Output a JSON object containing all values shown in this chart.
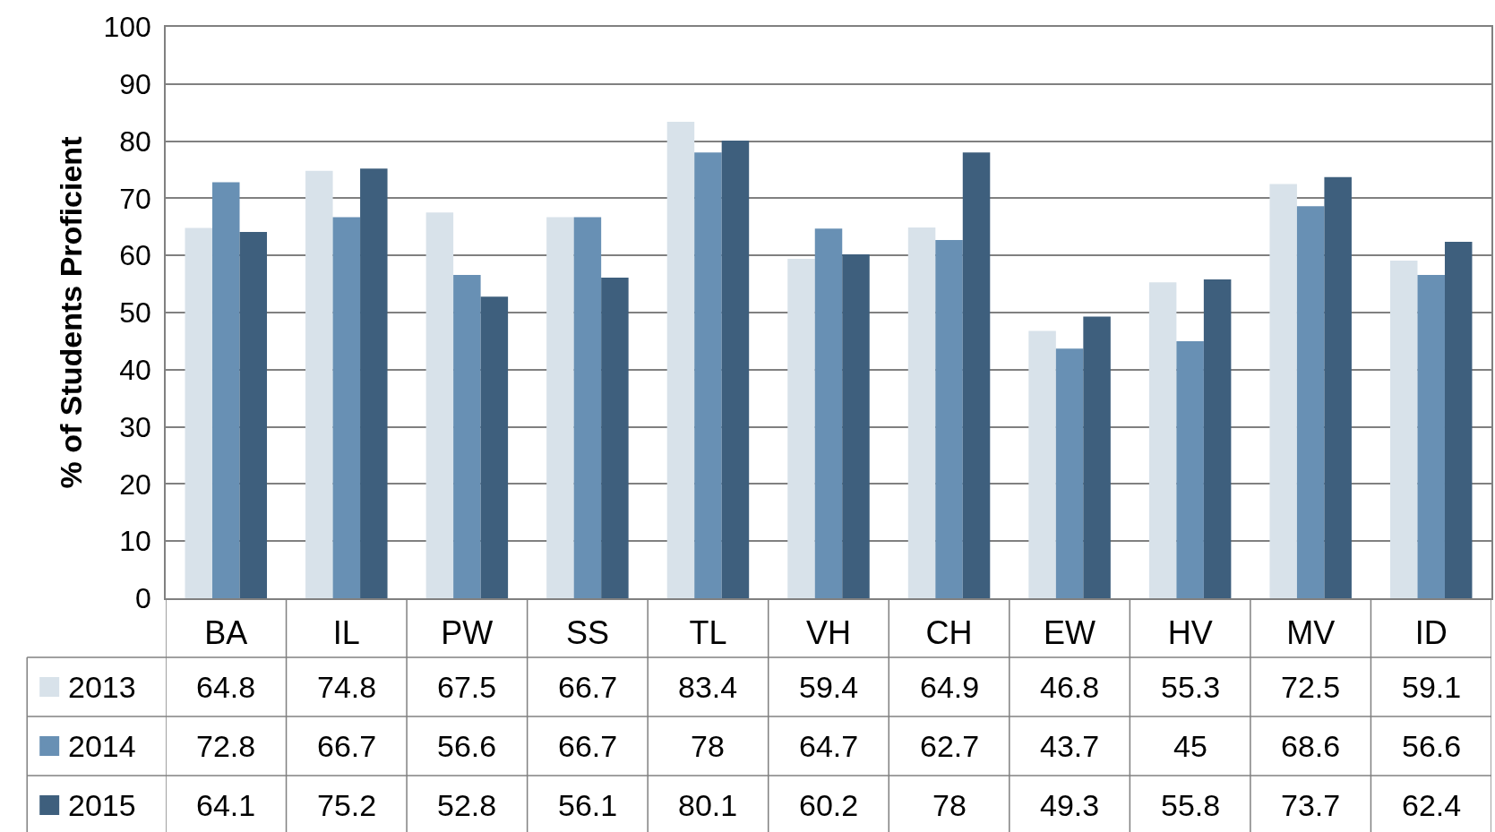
{
  "chart_data": {
    "type": "bar",
    "ylabel": "% of Students Proficient",
    "categories": [
      "BA",
      "IL",
      "PW",
      "SS",
      "TL",
      "VH",
      "CH",
      "EW",
      "HV",
      "MV",
      "ID"
    ],
    "series": [
      {
        "name": "2013",
        "color": "#d8e2ea",
        "values": [
          64.8,
          74.8,
          67.5,
          66.7,
          83.4,
          59.4,
          64.9,
          46.8,
          55.3,
          72.5,
          59.1
        ]
      },
      {
        "name": "2014",
        "color": "#6890b4",
        "values": [
          72.8,
          66.7,
          56.6,
          66.7,
          78,
          64.7,
          62.7,
          43.7,
          45,
          68.6,
          56.6
        ]
      },
      {
        "name": "2015",
        "color": "#3e5f7d",
        "values": [
          64.1,
          75.2,
          52.8,
          56.1,
          80.1,
          60.2,
          78,
          49.3,
          55.8,
          73.7,
          62.4
        ]
      }
    ],
    "ylim": [
      0,
      100
    ],
    "yticks": [
      0,
      10,
      20,
      30,
      40,
      50,
      60,
      70,
      80,
      90,
      100
    ],
    "grid": "y",
    "data_labels": true,
    "legend": "bottom left"
  }
}
